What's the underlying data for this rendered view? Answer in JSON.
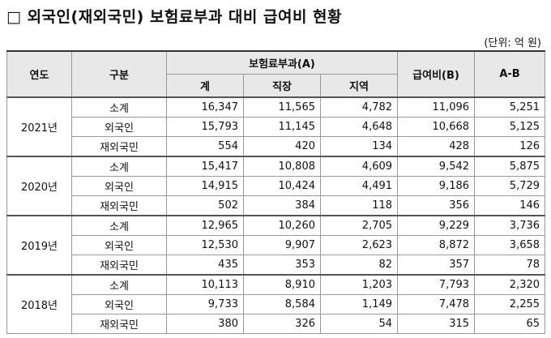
{
  "header": {
    "title": "□ 외국인(재외국민) 보험료부과 대비 급여비 현황",
    "unit": "(단위: 억 원)"
  },
  "table": {
    "columns": {
      "year": "연도",
      "category": "구분",
      "premium": "보험료부과(A)",
      "total": "계",
      "workplace": "직장",
      "regional": "지역",
      "benefit": "급여비(B)",
      "diff": "A-B"
    },
    "groups": [
      {
        "year": "2021년",
        "rows": [
          [
            "소계",
            "16,347",
            "11,565",
            "4,782",
            "11,096",
            "5,251"
          ],
          [
            "외국인",
            "15,793",
            "11,145",
            "4,648",
            "10,668",
            "5,125"
          ],
          [
            "재외국민",
            "554",
            "420",
            "134",
            "428",
            "126"
          ]
        ]
      },
      {
        "year": "2020년",
        "rows": [
          [
            "소계",
            "15,417",
            "10,808",
            "4,609",
            "9,542",
            "5,875"
          ],
          [
            "외국인",
            "14,915",
            "10,424",
            "4,491",
            "9,186",
            "5,729"
          ],
          [
            "재외국민",
            "502",
            "384",
            "118",
            "356",
            "146"
          ]
        ]
      },
      {
        "year": "2019년",
        "rows": [
          [
            "소계",
            "12,965",
            "10,260",
            "2,705",
            "9,229",
            "3,736"
          ],
          [
            "외국인",
            "12,530",
            "9,907",
            "2,623",
            "8,872",
            "3,658"
          ],
          [
            "재외국민",
            "435",
            "353",
            "82",
            "357",
            "78"
          ]
        ]
      },
      {
        "year": "2018년",
        "rows": [
          [
            "소계",
            "10,113",
            "8,910",
            "1,203",
            "7,793",
            "2,320"
          ],
          [
            "외국인",
            "9,733",
            "8,584",
            "1,149",
            "7,478",
            "2,255"
          ],
          [
            "재외국민",
            "380",
            "326",
            "54",
            "315",
            "65"
          ]
        ]
      }
    ]
  }
}
